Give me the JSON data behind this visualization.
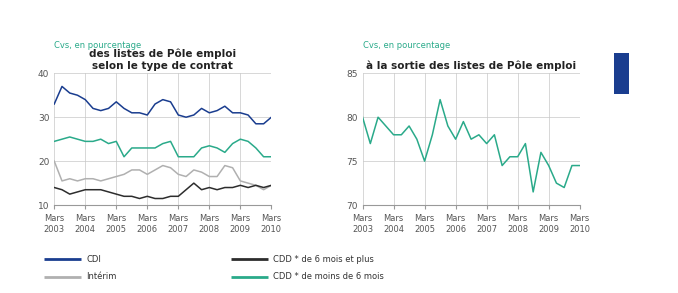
{
  "title_left": "des listes de Pôle emploi\nselon le type de contrat",
  "title_right": "à la sortie des listes de Pôle emploi",
  "ylabel_left": "Cvs, en pourcentage",
  "ylabel_right": "Cvs, en pourcentage",
  "xtick_labels": [
    "Mars\n2003",
    "Mars\n2004",
    "Mars\n2005",
    "Mars\n2006",
    "Mars\n2007",
    "Mars\n2008",
    "Mars\n2009",
    "Mars\n2010"
  ],
  "ylim_left": [
    10,
    40
  ],
  "ylim_right": [
    70,
    85
  ],
  "yticks_left": [
    10,
    20,
    30,
    40
  ],
  "yticks_right": [
    70,
    75,
    80,
    85
  ],
  "n_points": 29,
  "CDI": [
    33,
    37,
    35.5,
    35,
    34,
    32,
    31.5,
    32,
    33.5,
    32,
    31,
    31,
    30.5,
    33,
    34,
    33.5,
    30.5,
    30,
    30.5,
    32,
    31,
    31.5,
    32.5,
    31,
    31,
    30.5,
    28.5,
    28.5,
    30
  ],
  "Interim": [
    20,
    15.5,
    16,
    15.5,
    16,
    16,
    15.5,
    16,
    16.5,
    17,
    18,
    18,
    17,
    18,
    19,
    18.5,
    17,
    16.5,
    18,
    17.5,
    16.5,
    16.5,
    19,
    18.5,
    15.5,
    15,
    14.5,
    13.5,
    14.5
  ],
  "CDD_long": [
    14,
    13.5,
    12.5,
    13,
    13.5,
    13.5,
    13.5,
    13,
    12.5,
    12,
    12,
    11.5,
    12,
    11.5,
    11.5,
    12,
    12,
    13.5,
    15,
    13.5,
    14,
    13.5,
    14,
    14,
    14.5,
    14,
    14.5,
    14,
    14.5
  ],
  "CDD_court": [
    24.5,
    25,
    25.5,
    25,
    24.5,
    24.5,
    25,
    24,
    24.5,
    21,
    23,
    23,
    23,
    23,
    24,
    24.5,
    21,
    21,
    21,
    23,
    23.5,
    23,
    22,
    24,
    25,
    24.5,
    23,
    21,
    21
  ],
  "right_line": [
    80,
    77,
    80,
    79,
    78,
    78,
    79,
    77.5,
    75,
    78,
    82,
    79,
    77.5,
    79.5,
    77.5,
    78,
    77,
    78,
    74.5,
    75.5,
    75.5,
    77,
    71.5,
    76,
    74.5,
    72.5,
    72,
    74.5,
    74.5
  ],
  "color_CDI": "#1a3d8f",
  "color_interim": "#b0b0b0",
  "color_CDD_long": "#2d2d2d",
  "color_CDD_court": "#2aaa8a",
  "color_right": "#2aaa8a",
  "color_grid": "#c8c8c8",
  "color_teal_text": "#2aaa8a",
  "legend_entries": [
    "CDI",
    "Intérim",
    "CDD * de 6 mois et plus",
    "CDD * de moins de 6 mois"
  ],
  "background_color": "#ffffff",
  "blue_rect_color": "#1a3d8f"
}
